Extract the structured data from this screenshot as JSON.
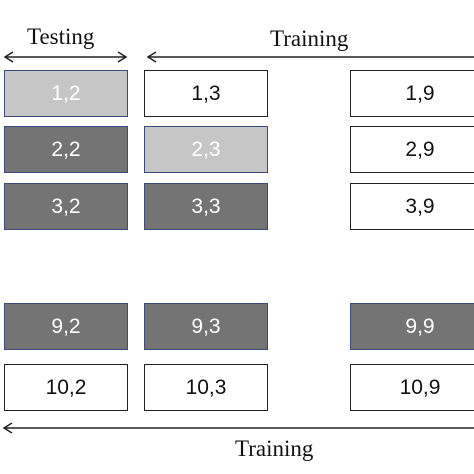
{
  "labels": {
    "testing": "Testing",
    "training_top": "Training",
    "training_bottom": "Training"
  },
  "colors": {
    "white": "#ffffff",
    "dark": "#747474",
    "light": "#c6c6c6",
    "border": "#3b4a7a",
    "arrow": "#222222"
  },
  "columns": [
    "2",
    "3",
    "9"
  ],
  "rows": [
    {
      "cells": [
        {
          "text": "1,2",
          "style": "light"
        },
        {
          "text": "1,3",
          "style": "white"
        },
        {
          "text": "1,9",
          "style": "white"
        }
      ]
    },
    {
      "cells": [
        {
          "text": "2,2",
          "style": "dark"
        },
        {
          "text": "2,3",
          "style": "light"
        },
        {
          "text": "2,9",
          "style": "white"
        }
      ]
    },
    {
      "cells": [
        {
          "text": "3,2",
          "style": "dark"
        },
        {
          "text": "3,3",
          "style": "dark"
        },
        {
          "text": "3,9",
          "style": "white"
        }
      ]
    },
    {
      "cells": [
        {
          "text": "9,2",
          "style": "dark"
        },
        {
          "text": "9,3",
          "style": "dark"
        },
        {
          "text": "9,9",
          "style": "dark"
        }
      ]
    },
    {
      "cells": [
        {
          "text": "10,2",
          "style": "white"
        },
        {
          "text": "10,3",
          "style": "white"
        },
        {
          "text": "10,9",
          "style": "white"
        }
      ]
    }
  ]
}
